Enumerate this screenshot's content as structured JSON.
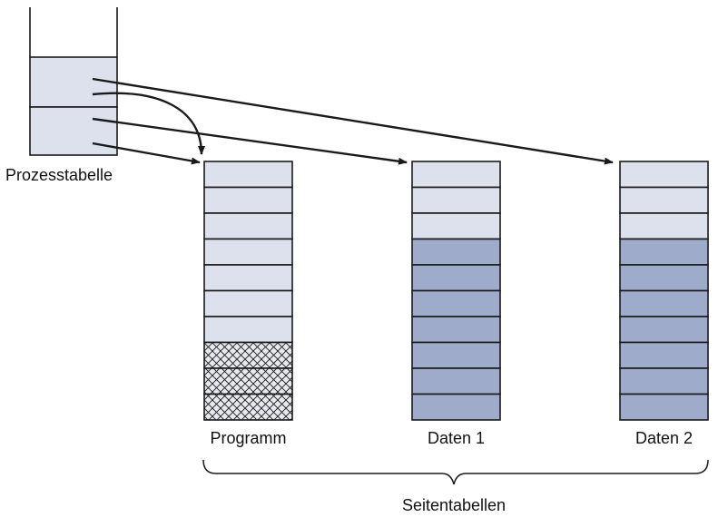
{
  "labels": {
    "process_table": "Prozesstabelle",
    "page_tables": "Seitentabellen"
  },
  "tables": [
    {
      "id": "programm",
      "label": "Programm",
      "rows": [
        "light",
        "light",
        "light",
        "light",
        "light",
        "light",
        "light",
        "hatched",
        "hatched",
        "hatched"
      ]
    },
    {
      "id": "daten-1",
      "label": "Daten 1",
      "rows": [
        "light",
        "light",
        "light",
        "dark",
        "dark",
        "dark",
        "dark",
        "dark",
        "dark",
        "dark"
      ]
    },
    {
      "id": "daten-2",
      "label": "Daten 2",
      "rows": [
        "light",
        "light",
        "light",
        "dark",
        "dark",
        "dark",
        "dark",
        "dark",
        "dark",
        "dark"
      ]
    }
  ],
  "colors": {
    "light": "#dde1ee",
    "dark": "#9fabcb",
    "stroke": "#1a1a1a",
    "hatch_bg": "#e8e9ef"
  }
}
